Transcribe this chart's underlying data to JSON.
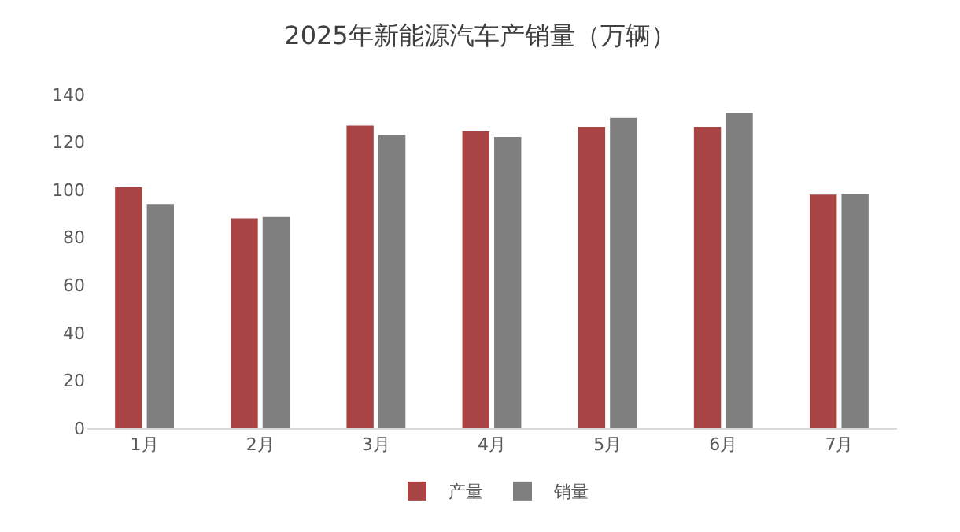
{
  "chart_data": {
    "type": "bar",
    "title": "2025年新能源汽车产销量（万辆）",
    "categories": [
      "1月",
      "2月",
      "3月",
      "4月",
      "5月",
      "6月",
      "7月"
    ],
    "series": [
      {
        "name": "产量",
        "color": "#a84444",
        "values": [
          101,
          88,
          127,
          124.6,
          126.3,
          126.3,
          98
        ]
      },
      {
        "name": "销量",
        "color": "#7f7f7f",
        "values": [
          94,
          88.6,
          123,
          122.2,
          130.2,
          132.2,
          98.4
        ]
      }
    ],
    "ylim": [
      0,
      140
    ],
    "yticks": [
      0,
      20,
      40,
      60,
      80,
      100,
      120,
      140
    ],
    "grid": false,
    "legend": "bottom"
  }
}
